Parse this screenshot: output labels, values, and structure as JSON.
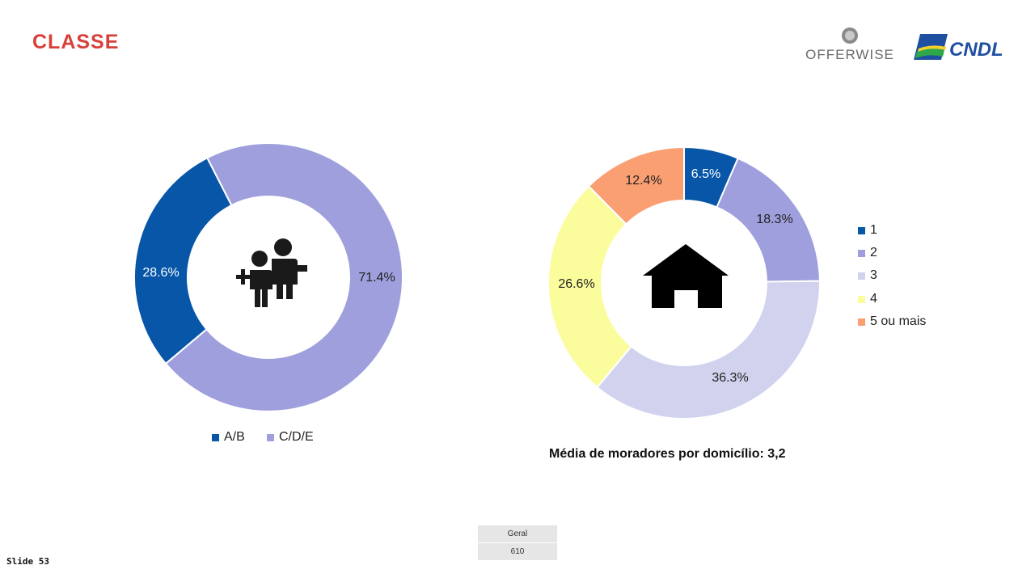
{
  "header": {
    "title": "CLASSE"
  },
  "logos": {
    "offerwise": "OFFERWISE",
    "cndl": "CNDL"
  },
  "chart_data": [
    {
      "type": "pie",
      "categories": [
        "A/B",
        "C/D/E"
      ],
      "values": [
        28.6,
        71.4
      ],
      "labels": [
        "28.6%",
        "71.4%"
      ],
      "colors": [
        "#0756a8",
        "#9f9fdd"
      ],
      "legend_placement": "bottom",
      "icon": "people-icon"
    },
    {
      "type": "pie",
      "categories": [
        "1",
        "2",
        "3",
        "4",
        "5 ou mais"
      ],
      "values": [
        6.5,
        18.3,
        36.3,
        26.6,
        12.4
      ],
      "labels": [
        "6.5%",
        "18.3%",
        "36.3%",
        "26.6%",
        "12.4%"
      ],
      "colors": [
        "#0756a8",
        "#9f9fdd",
        "#d0d2ee",
        "#fbfc9c",
        "#f99f72"
      ],
      "legend_placement": "right",
      "icon": "house-icon"
    }
  ],
  "note": "Média de moradores por domicílio: 3,2",
  "table": {
    "header": "Geral",
    "value": "610"
  },
  "footer": {
    "slide": "Slide 53"
  }
}
